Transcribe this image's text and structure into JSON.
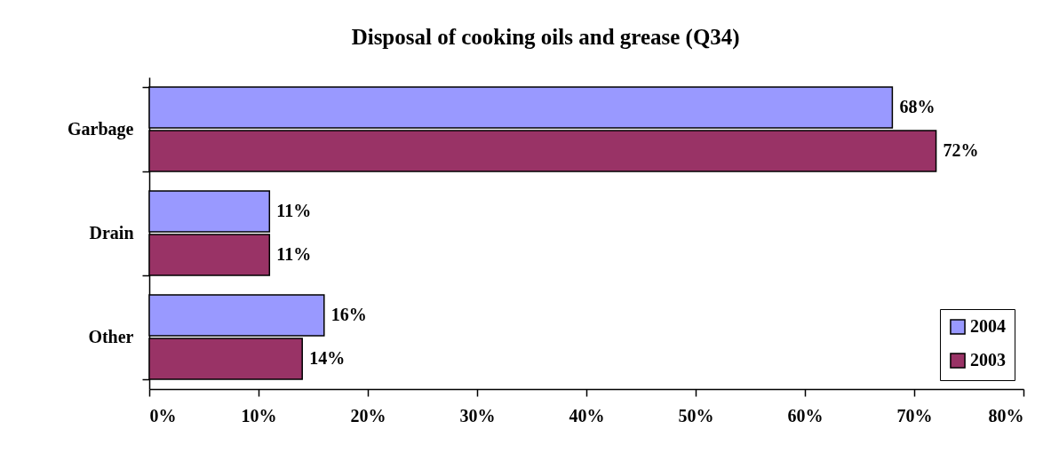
{
  "chart_data": {
    "type": "bar",
    "orientation": "horizontal",
    "title": "Disposal of cooking oils and grease (Q34)",
    "categories": [
      "Garbage",
      "Drain",
      "Other"
    ],
    "series": [
      {
        "name": "2004",
        "color": "#9999ff",
        "values": [
          68,
          11,
          16
        ],
        "value_labels": [
          "68%",
          "11%",
          "16%"
        ]
      },
      {
        "name": "2003",
        "color": "#993366",
        "values": [
          72,
          11,
          14
        ],
        "value_labels": [
          "72%",
          "11%",
          "14%"
        ]
      }
    ],
    "xlim": [
      0,
      80
    ],
    "xticks": [
      {
        "value": 0,
        "label": "0%"
      },
      {
        "value": 10,
        "label": "10%"
      },
      {
        "value": 20,
        "label": "20%"
      },
      {
        "value": 30,
        "label": "30%"
      },
      {
        "value": 40,
        "label": "40%"
      },
      {
        "value": 50,
        "label": "50%"
      },
      {
        "value": 60,
        "label": "60%"
      },
      {
        "value": 70,
        "label": "70%"
      },
      {
        "value": 80,
        "label": "80%"
      }
    ],
    "legend": "bottom right"
  }
}
